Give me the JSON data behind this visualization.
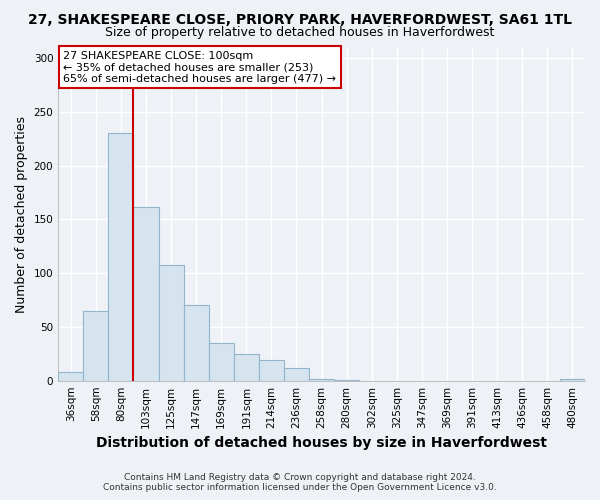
{
  "title": "27, SHAKESPEARE CLOSE, PRIORY PARK, HAVERFORDWEST, SA61 1TL",
  "subtitle": "Size of property relative to detached houses in Haverfordwest",
  "xlabel": "Distribution of detached houses by size in Haverfordwest",
  "ylabel": "Number of detached properties",
  "bar_color": "#d6e4f0",
  "bar_edge_color": "#92b4cc",
  "categories": [
    "36sqm",
    "58sqm",
    "80sqm",
    "103sqm",
    "125sqm",
    "147sqm",
    "169sqm",
    "191sqm",
    "214sqm",
    "236sqm",
    "258sqm",
    "280sqm",
    "302sqm",
    "325sqm",
    "347sqm",
    "369sqm",
    "391sqm",
    "413sqm",
    "436sqm",
    "458sqm",
    "480sqm"
  ],
  "values": [
    8,
    65,
    230,
    162,
    108,
    70,
    35,
    25,
    19,
    12,
    2,
    1,
    0,
    0,
    0,
    0,
    0,
    0,
    0,
    0,
    2
  ],
  "ylim": [
    0,
    310
  ],
  "yticks": [
    0,
    50,
    100,
    150,
    200,
    250,
    300
  ],
  "vline_color": "#cc0000",
  "annotation_line1": "27 SHAKESPEARE CLOSE: 100sqm",
  "annotation_line2": "← 35% of detached houses are smaller (253)",
  "annotation_line3": "65% of semi-detached houses are larger (477) →",
  "annotation_box_color": "#ffffff",
  "annotation_box_edge": "#cc0000",
  "footer_line1": "Contains HM Land Registry data © Crown copyright and database right 2024.",
  "footer_line2": "Contains public sector information licensed under the Open Government Licence v3.0.",
  "background_color": "#eef2f7",
  "grid_color": "#ffffff",
  "title_fontsize": 10,
  "subtitle_fontsize": 9,
  "axis_label_fontsize": 9,
  "tick_fontsize": 7.5,
  "annotation_fontsize": 8
}
